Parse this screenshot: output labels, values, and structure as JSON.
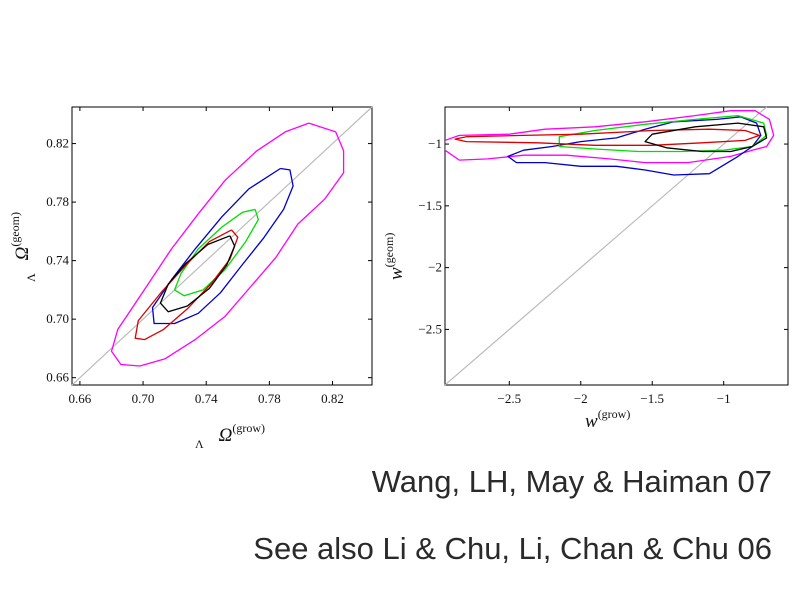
{
  "chart_data": [
    {
      "type": "contour",
      "xlabel": "Ω",
      "xlabel_sup": "(grow)",
      "xlabel_sub": "Λ",
      "ylabel": "Ω",
      "ylabel_sup": "(geom)",
      "ylabel_sub": "Λ",
      "xlim": [
        0.655,
        0.845
      ],
      "ylim": [
        0.655,
        0.845
      ],
      "xticks": [
        0.66,
        0.7,
        0.74,
        0.78,
        0.82
      ],
      "yticks": [
        0.66,
        0.7,
        0.74,
        0.78,
        0.82
      ],
      "xtick_labels": [
        "0.66",
        "0.70",
        "0.74",
        "0.78",
        "0.82"
      ],
      "ytick_labels": [
        "0.66",
        "0.70",
        "0.74",
        "0.78",
        "0.82"
      ],
      "diagonal": {
        "color": "#bbbbbb",
        "points": [
          [
            0.655,
            0.655
          ],
          [
            0.845,
            0.845
          ]
        ]
      },
      "series": [
        {
          "color": "#ff00ff",
          "points": [
            [
              0.805,
              0.834
            ],
            [
              0.822,
              0.828
            ],
            [
              0.827,
              0.815
            ],
            [
              0.827,
              0.8
            ],
            [
              0.815,
              0.782
            ],
            [
              0.798,
              0.765
            ],
            [
              0.784,
              0.742
            ],
            [
              0.768,
              0.722
            ],
            [
              0.752,
              0.702
            ],
            [
              0.733,
              0.686
            ],
            [
              0.714,
              0.673
            ],
            [
              0.698,
              0.668
            ],
            [
              0.686,
              0.669
            ],
            [
              0.68,
              0.678
            ],
            [
              0.684,
              0.693
            ],
            [
              0.702,
              0.722
            ],
            [
              0.718,
              0.748
            ],
            [
              0.735,
              0.772
            ],
            [
              0.752,
              0.795
            ],
            [
              0.772,
              0.815
            ],
            [
              0.79,
              0.828
            ],
            [
              0.805,
              0.834
            ]
          ]
        },
        {
          "color": "#0000cc",
          "points": [
            [
              0.787,
              0.803
            ],
            [
              0.793,
              0.802
            ],
            [
              0.795,
              0.791
            ],
            [
              0.789,
              0.775
            ],
            [
              0.776,
              0.755
            ],
            [
              0.762,
              0.736
            ],
            [
              0.749,
              0.718
            ],
            [
              0.735,
              0.704
            ],
            [
              0.72,
              0.697
            ],
            [
              0.707,
              0.697
            ],
            [
              0.706,
              0.708
            ],
            [
              0.718,
              0.727
            ],
            [
              0.733,
              0.748
            ],
            [
              0.75,
              0.77
            ],
            [
              0.767,
              0.789
            ],
            [
              0.787,
              0.803
            ]
          ]
        },
        {
          "color": "#00dd00",
          "points": [
            [
              0.771,
              0.775
            ],
            [
              0.773,
              0.768
            ],
            [
              0.765,
              0.753
            ],
            [
              0.752,
              0.734
            ],
            [
              0.738,
              0.72
            ],
            [
              0.726,
              0.716
            ],
            [
              0.72,
              0.72
            ],
            [
              0.724,
              0.731
            ],
            [
              0.735,
              0.748
            ],
            [
              0.75,
              0.763
            ],
            [
              0.763,
              0.773
            ],
            [
              0.771,
              0.775
            ]
          ]
        },
        {
          "color": "#dd0000",
          "points": [
            [
              0.756,
              0.761
            ],
            [
              0.76,
              0.756
            ],
            [
              0.755,
              0.741
            ],
            [
              0.743,
              0.724
            ],
            [
              0.728,
              0.707
            ],
            [
              0.713,
              0.693
            ],
            [
              0.701,
              0.686
            ],
            [
              0.695,
              0.687
            ],
            [
              0.697,
              0.699
            ],
            [
              0.712,
              0.719
            ],
            [
              0.728,
              0.738
            ],
            [
              0.742,
              0.753
            ],
            [
              0.756,
              0.761
            ]
          ]
        },
        {
          "color": "#000000",
          "points": [
            [
              0.755,
              0.757
            ],
            [
              0.758,
              0.75
            ],
            [
              0.753,
              0.737
            ],
            [
              0.742,
              0.721
            ],
            [
              0.728,
              0.709
            ],
            [
              0.716,
              0.705
            ],
            [
              0.711,
              0.711
            ],
            [
              0.716,
              0.724
            ],
            [
              0.727,
              0.738
            ],
            [
              0.741,
              0.751
            ],
            [
              0.755,
              0.757
            ]
          ]
        }
      ]
    },
    {
      "type": "contour",
      "xlabel": "w",
      "xlabel_sup": "(grow)",
      "ylabel": "w",
      "ylabel_sup": "(geom)",
      "xlim": [
        -2.95,
        -0.55
      ],
      "ylim": [
        -2.95,
        -0.7
      ],
      "xticks": [
        -2.5,
        -2.0,
        -1.5,
        -1.0
      ],
      "yticks": [
        -1.0,
        -1.5,
        -2.0,
        -2.5
      ],
      "xtick_labels": [
        "−2.5",
        "−2",
        "−1.5",
        "−1"
      ],
      "ytick_labels": [
        "−1",
        "−1.5",
        "−2",
        "−2.5"
      ],
      "diagonal": {
        "color": "#bbbbbb",
        "points": [
          [
            -2.95,
            -2.95
          ],
          [
            -0.7,
            -0.7
          ]
        ]
      },
      "series": [
        {
          "color": "#ff00ff",
          "points": [
            [
              -2.95,
              -0.97
            ],
            [
              -2.85,
              -0.93
            ],
            [
              -2.5,
              -0.92
            ],
            [
              -2.25,
              -0.88
            ],
            [
              -1.9,
              -0.86
            ],
            [
              -1.55,
              -0.82
            ],
            [
              -1.2,
              -0.77
            ],
            [
              -0.95,
              -0.73
            ],
            [
              -0.78,
              -0.73
            ],
            [
              -0.68,
              -0.8
            ],
            [
              -0.65,
              -0.93
            ],
            [
              -0.7,
              -1.02
            ],
            [
              -0.8,
              -1.05
            ],
            [
              -0.95,
              -1.1
            ],
            [
              -1.25,
              -1.15
            ],
            [
              -1.55,
              -1.15
            ],
            [
              -1.8,
              -1.12
            ],
            [
              -2.1,
              -1.09
            ],
            [
              -2.4,
              -1.09
            ],
            [
              -2.65,
              -1.12
            ],
            [
              -2.85,
              -1.13
            ],
            [
              -2.95,
              -1.05
            ],
            [
              -2.95,
              -0.97
            ]
          ]
        },
        {
          "color": "#0000cc",
          "points": [
            [
              -1.05,
              -0.8
            ],
            [
              -0.88,
              -0.78
            ],
            [
              -0.77,
              -0.83
            ],
            [
              -0.74,
              -0.93
            ],
            [
              -0.8,
              -1.02
            ],
            [
              -0.9,
              -1.1
            ],
            [
              -1.1,
              -1.24
            ],
            [
              -1.35,
              -1.25
            ],
            [
              -1.55,
              -1.21
            ],
            [
              -1.75,
              -1.18
            ],
            [
              -2.0,
              -1.18
            ],
            [
              -2.25,
              -1.15
            ],
            [
              -2.45,
              -1.15
            ],
            [
              -2.51,
              -1.1
            ],
            [
              -2.4,
              -1.05
            ],
            [
              -2.2,
              -1.02
            ],
            [
              -2.0,
              -0.98
            ],
            [
              -1.75,
              -0.95
            ],
            [
              -1.55,
              -0.88
            ],
            [
              -1.35,
              -0.82
            ],
            [
              -1.05,
              -0.8
            ]
          ]
        },
        {
          "color": "#00dd00",
          "points": [
            [
              -1.2,
              -0.8
            ],
            [
              -0.9,
              -0.77
            ],
            [
              -0.72,
              -0.83
            ],
            [
              -0.7,
              -0.93
            ],
            [
              -0.8,
              -1.02
            ],
            [
              -1.0,
              -1.05
            ],
            [
              -1.3,
              -1.06
            ],
            [
              -1.6,
              -1.06
            ],
            [
              -1.9,
              -1.04
            ],
            [
              -2.15,
              -1.02
            ],
            [
              -2.15,
              -0.94
            ],
            [
              -1.9,
              -0.89
            ],
            [
              -1.55,
              -0.84
            ],
            [
              -1.2,
              -0.8
            ]
          ]
        },
        {
          "color": "#dd0000",
          "points": [
            [
              -2.8,
              -0.94
            ],
            [
              -2.4,
              -0.93
            ],
            [
              -2.0,
              -0.92
            ],
            [
              -1.5,
              -0.89
            ],
            [
              -1.1,
              -0.88
            ],
            [
              -0.85,
              -0.89
            ],
            [
              -0.75,
              -0.93
            ],
            [
              -0.85,
              -0.97
            ],
            [
              -1.15,
              -0.99
            ],
            [
              -1.5,
              -1.01
            ],
            [
              -1.9,
              -1.01
            ],
            [
              -2.3,
              -0.99
            ],
            [
              -2.8,
              -0.98
            ],
            [
              -2.88,
              -0.96
            ],
            [
              -2.8,
              -0.94
            ]
          ]
        },
        {
          "color": "#000000",
          "points": [
            [
              -1.2,
              -0.86
            ],
            [
              -0.9,
              -0.83
            ],
            [
              -0.72,
              -0.86
            ],
            [
              -0.7,
              -0.95
            ],
            [
              -0.8,
              -1.02
            ],
            [
              -0.95,
              -1.06
            ],
            [
              -1.15,
              -1.06
            ],
            [
              -1.4,
              -1.03
            ],
            [
              -1.55,
              -0.98
            ],
            [
              -1.5,
              -0.92
            ],
            [
              -1.2,
              -0.86
            ]
          ]
        }
      ]
    }
  ],
  "captions": {
    "line1": "Wang, LH, May & Haiman 07",
    "line2": "See also Li & Chu, Li, Chan & Chu 06"
  }
}
